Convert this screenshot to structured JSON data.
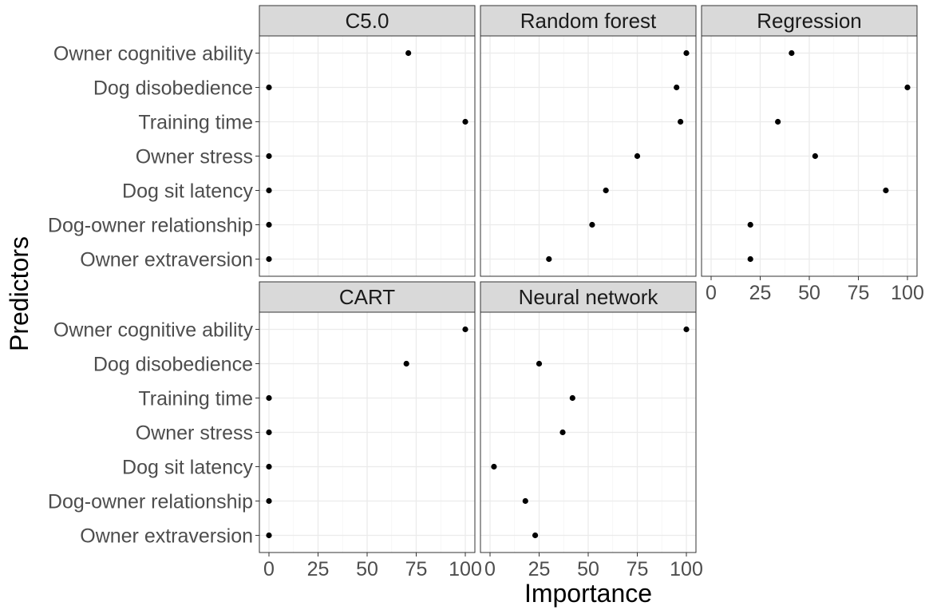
{
  "chart_data": {
    "type": "scatter",
    "xlabel": "Importance",
    "ylabel": "Predictors",
    "xlim": [
      0,
      100
    ],
    "xticks": [
      0,
      25,
      50,
      75,
      100
    ],
    "grid": true,
    "predictors": [
      "Owner cognitive ability",
      "Dog disobedience",
      "Training time",
      "Owner stress",
      "Dog sit latency",
      "Dog-owner relationship",
      "Owner extraversion"
    ],
    "panels": [
      {
        "title": "C5.0",
        "values": [
          71,
          0,
          100,
          0,
          0,
          0,
          0
        ]
      },
      {
        "title": "Random forest",
        "values": [
          100,
          95,
          97,
          75,
          59,
          52,
          30
        ]
      },
      {
        "title": "Regression",
        "values": [
          41,
          100,
          34,
          53,
          89,
          20,
          20
        ]
      },
      {
        "title": "CART",
        "values": [
          100,
          70,
          0,
          0,
          0,
          0,
          0
        ]
      },
      {
        "title": "Neural network",
        "values": [
          100,
          25,
          42,
          37,
          2,
          18,
          23
        ]
      }
    ]
  }
}
